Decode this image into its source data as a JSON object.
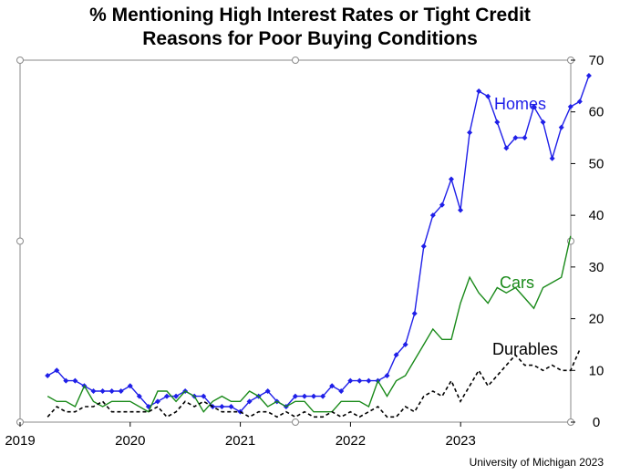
{
  "chart_data": {
    "type": "line",
    "title_lines": [
      "% Mentioning High Interest Rates or Tight Credit",
      "Reasons for Poor Buying Conditions"
    ],
    "x_tick_labels": [
      "2019",
      "2020",
      "2021",
      "2022",
      "2023"
    ],
    "y_tick_labels": [
      "0",
      "10",
      "20",
      "30",
      "40",
      "50",
      "60",
      "70"
    ],
    "xlim": [
      2019.0,
      2024.0
    ],
    "ylim": [
      0,
      70
    ],
    "grid": false,
    "y_axis_side": "right",
    "series": [
      {
        "name": "Homes",
        "color": "#1f1fe8",
        "style": "solid",
        "markers": "diamond",
        "x_start": 2019.25,
        "x_step": 0.0833,
        "values": [
          9,
          10,
          8,
          8,
          7,
          6,
          6,
          6,
          6,
          7,
          5,
          3,
          4,
          5,
          5,
          6,
          5,
          5,
          3,
          3,
          3,
          2,
          4,
          5,
          6,
          4,
          3,
          5,
          5,
          5,
          5,
          7,
          6,
          8,
          8,
          8,
          8,
          9,
          13,
          15,
          21,
          34,
          40,
          42,
          47,
          41,
          56,
          64,
          63,
          58,
          53,
          55,
          55,
          61,
          58,
          51,
          57,
          61,
          62,
          67
        ]
      },
      {
        "name": "Cars",
        "color": "#1a8a1a",
        "style": "solid",
        "markers": "none",
        "x_start": 2019.25,
        "x_step": 0.0833,
        "values": [
          5,
          4,
          4,
          3,
          7,
          4,
          3,
          4,
          4,
          4,
          3,
          2,
          6,
          6,
          4,
          6,
          5,
          2,
          4,
          5,
          4,
          4,
          6,
          5,
          3,
          4,
          3,
          4,
          4,
          2,
          2,
          2,
          4,
          4,
          4,
          3,
          8,
          5,
          8,
          9,
          12,
          15,
          18,
          16,
          16,
          23,
          28,
          25,
          23,
          26,
          25,
          26,
          24,
          22,
          26,
          27,
          28,
          36
        ]
      },
      {
        "name": "Durables",
        "color": "#000000",
        "style": "dashed",
        "markers": "none",
        "x_start": 2019.25,
        "x_step": 0.0833,
        "values": [
          1,
          3,
          2,
          2,
          3,
          3,
          4,
          2,
          2,
          2,
          2,
          2,
          3,
          1,
          2,
          4,
          3,
          4,
          3,
          2,
          2,
          2,
          1,
          2,
          2,
          1,
          2,
          1,
          2,
          1,
          1,
          2,
          1,
          2,
          1,
          2,
          3,
          1,
          1,
          3,
          2,
          5,
          6,
          5,
          8,
          4,
          7,
          10,
          7,
          9,
          11,
          13,
          11,
          11,
          10,
          11,
          10,
          10,
          14
        ]
      }
    ],
    "series_labels": [
      "Homes",
      "Cars",
      "Durables"
    ]
  },
  "source": "University of Michigan 2023"
}
